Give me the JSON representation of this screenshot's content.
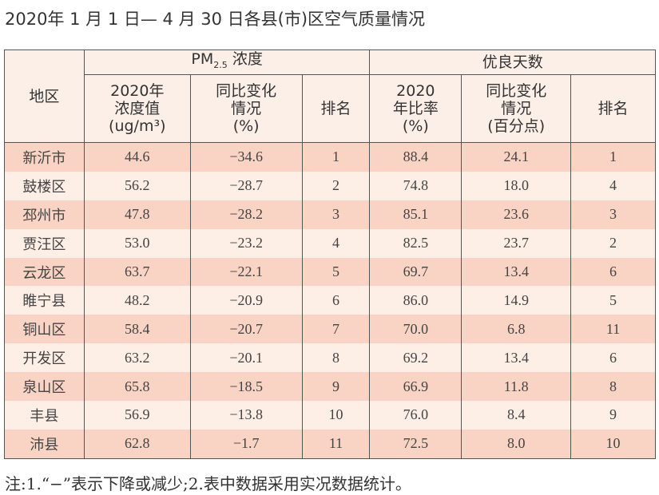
{
  "title": "2020年 1 月 1 日— 4 月 30 日各县(市)区空气质量情况",
  "header": {
    "region": "地区",
    "pm_group": "PM",
    "pm_sub": "2.5",
    "pm_group_suffix": " 浓度",
    "good_group": "优良天数",
    "pm_cols": [
      {
        "l1": "2020年",
        "l2": "浓度值",
        "l3": "(ug/m³)"
      },
      {
        "l1": "同比变化",
        "l2": "情况",
        "l3": "(%)"
      },
      {
        "l1": "排名"
      }
    ],
    "good_cols": [
      {
        "l1": "2020",
        "l2": "年比率",
        "l3": "(%)"
      },
      {
        "l1": "同比变化",
        "l2": "情况",
        "l3": "(百分点)"
      },
      {
        "l1": "排名"
      }
    ]
  },
  "rows": [
    [
      "新沂市",
      "44.6",
      "−34.6",
      "1",
      "88.4",
      "24.1",
      "1"
    ],
    [
      "鼓楼区",
      "56.2",
      "−28.7",
      "2",
      "74.8",
      "18.0",
      "4"
    ],
    [
      "邳州市",
      "47.8",
      "−28.2",
      "3",
      "85.1",
      "23.6",
      "3"
    ],
    [
      "贾汪区",
      "53.0",
      "−23.2",
      "4",
      "82.5",
      "23.7",
      "2"
    ],
    [
      "云龙区",
      "63.7",
      "−22.1",
      "5",
      "69.7",
      "13.4",
      "6"
    ],
    [
      "睢宁县",
      "48.2",
      "−20.9",
      "6",
      "86.0",
      "14.9",
      "5"
    ],
    [
      "铜山区",
      "58.4",
      "−20.7",
      "7",
      "70.0",
      "6.8",
      "11"
    ],
    [
      "开发区",
      "63.2",
      "−20.1",
      "8",
      "69.2",
      "13.4",
      "6"
    ],
    [
      "泉山区",
      "65.8",
      "−18.5",
      "9",
      "66.9",
      "11.8",
      "8"
    ],
    [
      "丰县",
      "56.9",
      "−13.8",
      "10",
      "76.0",
      "8.4",
      "9"
    ],
    [
      "沛县",
      "62.8",
      "−1.7",
      "11",
      "72.5",
      "8.0",
      "10"
    ]
  ],
  "note": "注:1.“−”表示下降或减少;2.表中数据采用实况数据统计。",
  "colors": {
    "header_bg": "#fcefe8",
    "row_dark": "#f9d4c4",
    "row_light": "#fdeee6",
    "border": "#555555"
  }
}
